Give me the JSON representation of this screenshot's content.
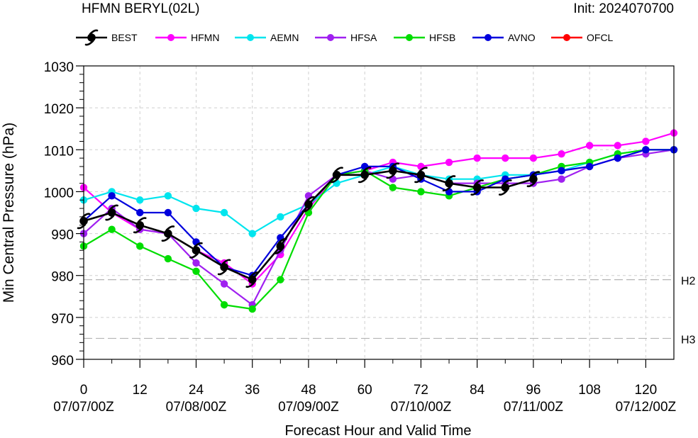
{
  "title": "HFMN BERYL(02L)",
  "init_label": "Init: 2024070700",
  "chart_data": {
    "type": "line",
    "xlabel": "Forecast Hour and Valid Time",
    "ylabel": "Min Central Pressure (hPa)",
    "xlim": [
      0,
      126
    ],
    "ylim": [
      960,
      1030
    ],
    "x_ticks": [
      0,
      12,
      24,
      36,
      48,
      60,
      72,
      84,
      96,
      108,
      120
    ],
    "x_tick_labels": [
      "0",
      "12",
      "24",
      "36",
      "48",
      "60",
      "72",
      "84",
      "96",
      "108",
      "120"
    ],
    "date_ticks": [
      {
        "x": 0,
        "label": "07/07/00Z"
      },
      {
        "x": 24,
        "label": "07/08/00Z"
      },
      {
        "x": 48,
        "label": "07/09/00Z"
      },
      {
        "x": 72,
        "label": "07/10/00Z"
      },
      {
        "x": 96,
        "label": "07/11/00Z"
      },
      {
        "x": 120,
        "label": "07/12/00Z"
      }
    ],
    "y_ticks": [
      960,
      970,
      980,
      990,
      1000,
      1010,
      1020,
      1030
    ],
    "y_tick_labels": [
      "960",
      "970",
      "980",
      "990",
      "1000",
      "1010",
      "1020",
      "1030"
    ],
    "grid": true,
    "reference_lines": [
      {
        "y": 979,
        "label": "H2"
      },
      {
        "y": 965,
        "label": "H3"
      }
    ],
    "legend_position": "top",
    "series": [
      {
        "name": "BEST",
        "color": "#000000",
        "marker": "hurricane",
        "x": [
          0,
          6,
          12,
          18,
          24,
          30,
          36,
          42,
          48,
          54,
          60,
          66,
          72,
          78,
          84,
          90,
          96
        ],
        "y": [
          993,
          995,
          992,
          990,
          986,
          982,
          979,
          987,
          997,
          1004,
          1004,
          1005,
          1004,
          1002,
          1001,
          1001,
          1003
        ]
      },
      {
        "name": "HFMN",
        "color": "#ff00ff",
        "marker": "circle",
        "x": [
          0,
          6,
          12,
          18,
          24,
          30,
          36,
          42,
          48,
          54,
          60,
          66,
          72,
          78,
          84,
          90,
          96,
          102,
          108,
          114,
          120,
          126
        ],
        "y": [
          1001,
          995,
          991,
          990,
          986,
          983,
          978,
          985,
          996,
          1004,
          1005,
          1007,
          1006,
          1007,
          1008,
          1008,
          1008,
          1009,
          1011,
          1011,
          1012,
          1014
        ]
      },
      {
        "name": "AEMN",
        "color": "#00e5ee",
        "marker": "circle",
        "x": [
          0,
          6,
          12,
          18,
          24,
          30,
          36,
          42,
          48,
          54,
          60,
          66,
          72,
          78,
          84,
          90,
          96,
          102,
          108,
          114,
          120,
          126
        ],
        "y": [
          998,
          1000,
          998,
          999,
          996,
          995,
          990,
          994,
          997,
          1002,
          1004,
          1006,
          1004,
          1003,
          1003,
          1004,
          1004,
          1005,
          1007,
          1009,
          1010,
          1010
        ]
      },
      {
        "name": "HFSA",
        "color": "#a020f0",
        "marker": "circle",
        "x": [
          0,
          6,
          12,
          18,
          24,
          30,
          36,
          42,
          48,
          54,
          60,
          66,
          72,
          78,
          84,
          90,
          96,
          102,
          108,
          114,
          120,
          126
        ],
        "y": [
          990,
          996,
          991,
          990,
          983,
          978,
          973,
          986,
          999,
          1004,
          1005,
          1003,
          1004,
          1002,
          1002,
          1002,
          1002,
          1003,
          1006,
          1008,
          1009,
          1010
        ]
      },
      {
        "name": "HFSB",
        "color": "#00dd00",
        "marker": "circle",
        "x": [
          0,
          6,
          12,
          18,
          24,
          30,
          36,
          42,
          48,
          54,
          60,
          66,
          72,
          78,
          84,
          90,
          96,
          102,
          108,
          114,
          120,
          126
        ],
        "y": [
          987,
          991,
          987,
          984,
          981,
          973,
          972,
          979,
          995,
          1004,
          1005,
          1001,
          1000,
          999,
          1001,
          1003,
          1004,
          1006,
          1007,
          1009,
          1010,
          1010
        ]
      },
      {
        "name": "AVNO",
        "color": "#0000dd",
        "marker": "circle",
        "x": [
          0,
          6,
          12,
          18,
          24,
          30,
          36,
          42,
          48,
          54,
          60,
          66,
          72,
          78,
          84,
          90,
          96,
          102,
          108,
          114,
          120,
          126
        ],
        "y": [
          993,
          999,
          995,
          995,
          988,
          982,
          980,
          989,
          997,
          1004,
          1006,
          1006,
          1003,
          1000,
          1000,
          1003,
          1004,
          1005,
          1006,
          1008,
          1010,
          1010
        ]
      },
      {
        "name": "OFCL",
        "color": "#ff0000",
        "marker": "circle",
        "x": [],
        "y": []
      }
    ]
  }
}
